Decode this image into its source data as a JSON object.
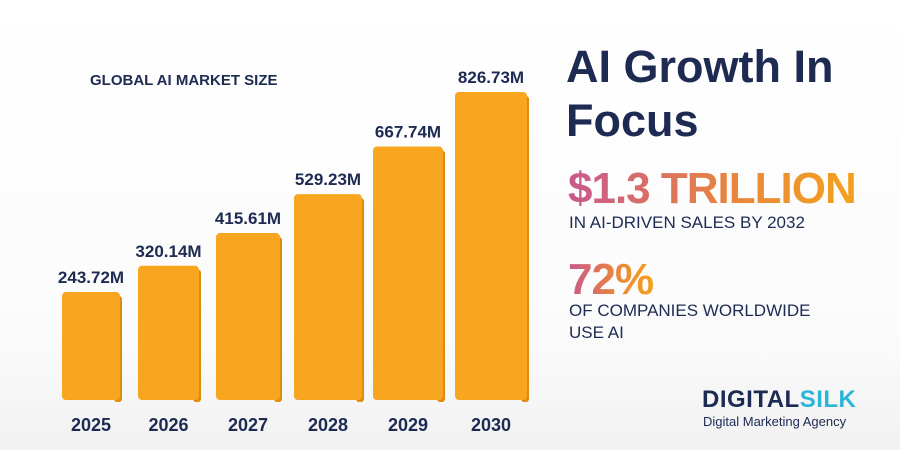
{
  "chart_data": {
    "type": "bar",
    "title": "GLOBAL AI MARKET SIZE",
    "categories": [
      "2025",
      "2026",
      "2027",
      "2028",
      "2029",
      "2030"
    ],
    "values": [
      243.72,
      320.14,
      415.61,
      529.23,
      667.74,
      826.73
    ],
    "data_labels": [
      "243.72M",
      "320.14M",
      "415.61M",
      "529.23M",
      "667.74M",
      "826.73M"
    ],
    "bar_color": "#f8a51f",
    "xlabel": "",
    "ylabel": "",
    "grid": false
  },
  "headline": "AI Growth In Focus",
  "stats": [
    {
      "value": "$1.3 TRILLION",
      "text": "IN AI-DRIVEN SALES BY 2032"
    },
    {
      "value": "72%",
      "text": "OF COMPANIES WORLDWIDE USE AI"
    }
  ],
  "brand": {
    "logo_part1": "DIGITAL",
    "logo_part2": "SILK",
    "tagline": "Digital Marketing Agency",
    "colors": {
      "navy": "#1d2a52",
      "cyan": "#2bb5d8"
    }
  }
}
